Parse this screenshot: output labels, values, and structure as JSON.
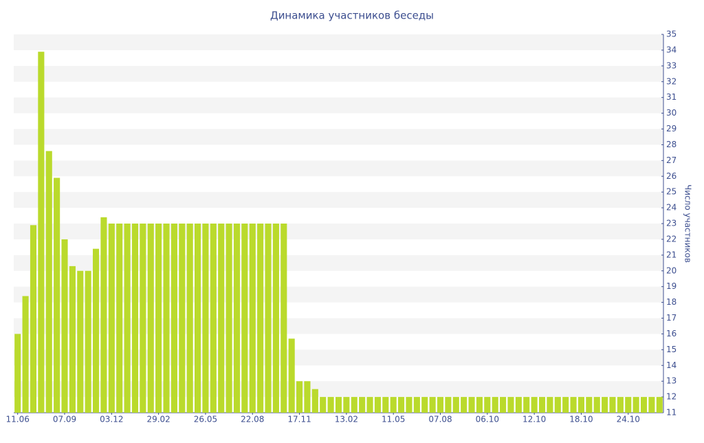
{
  "chart_data": {
    "type": "bar",
    "title": "Динамика участников беседы",
    "y_axis_label": "Число участников",
    "categories": [
      "11.06",
      null,
      null,
      null,
      null,
      null,
      "07.09",
      null,
      null,
      null,
      null,
      null,
      "03.12",
      null,
      null,
      null,
      null,
      null,
      "29.02",
      null,
      null,
      null,
      null,
      null,
      "26.05",
      null,
      null,
      null,
      null,
      null,
      "22.08",
      null,
      null,
      null,
      null,
      null,
      "17.11",
      null,
      null,
      null,
      null,
      null,
      "13.02",
      null,
      null,
      null,
      null,
      null,
      "11.05",
      null,
      null,
      null,
      null,
      null,
      "07.08",
      null,
      null,
      null,
      null,
      null,
      "06.10",
      null,
      null,
      null,
      null,
      null,
      "12.10",
      null,
      null,
      null,
      null,
      null,
      "18.10",
      null,
      null,
      null,
      null,
      null,
      "24.10",
      null,
      null,
      null,
      null
    ],
    "values": [
      16,
      18.4,
      22.9,
      33.9,
      27.6,
      25.9,
      22,
      20.3,
      20,
      20,
      21.4,
      23.4,
      23,
      23,
      23,
      23,
      23,
      23,
      23,
      23,
      23,
      23,
      23,
      23,
      23,
      23,
      23,
      23,
      23,
      23,
      23,
      23,
      23,
      23,
      23,
      15.7,
      13,
      13,
      12.5,
      12,
      12,
      12,
      12,
      12,
      12,
      12,
      12,
      12,
      12,
      12,
      12,
      12,
      12,
      12,
      12,
      12,
      12,
      12,
      12,
      12,
      12,
      12,
      12,
      12,
      12,
      12,
      12,
      12,
      12,
      12,
      12,
      12,
      12,
      12,
      12,
      12,
      12,
      12,
      12,
      12,
      12,
      12,
      12
    ],
    "color": "#bada2c",
    "ylim": [
      11,
      35
    ],
    "yticks": [
      11,
      12,
      13,
      14,
      15,
      16,
      17,
      18,
      19,
      20,
      21,
      22,
      23,
      24,
      25,
      26,
      27,
      28,
      29,
      30,
      31,
      32,
      33,
      34,
      35
    ],
    "grid": true
  }
}
